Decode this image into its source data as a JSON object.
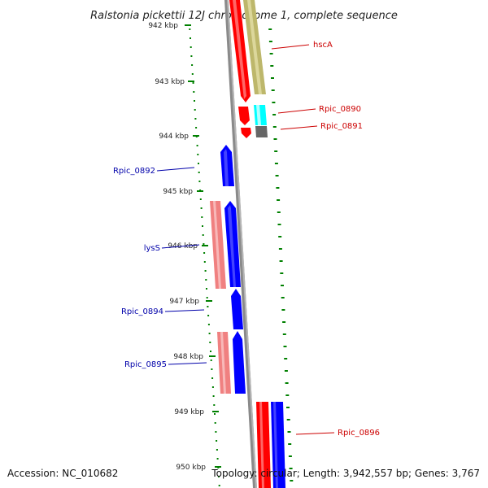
{
  "title": "Ralstonia pickettii 12J chromosome 1, complete sequence",
  "accession": "Accession: NC_010682",
  "topology": "Topology: circular; Length: 3,942,557 bp; Genes: 3,767",
  "ticks": [
    "942 kbp",
    "943 kbp",
    "944 kbp",
    "945 kbp",
    "946 kbp",
    "947 kbp",
    "948 kbp",
    "949 kbp",
    "950 kbp"
  ],
  "colors": {
    "forward": "#ff0000",
    "reverse": "#0000ff",
    "forward_rna": "#f08080",
    "tan": "#bdb76b",
    "cyan": "#00ffff",
    "gray": "#666666",
    "backbone": "#888888",
    "tick": "#008000"
  },
  "labels": [
    {
      "id": "hscA",
      "text": "hscA",
      "side": "right"
    },
    {
      "id": "rpic0890",
      "text": "Rpic_0890",
      "side": "right"
    },
    {
      "id": "rpic0891",
      "text": "Rpic_0891",
      "side": "right"
    },
    {
      "id": "rpic0892",
      "text": "Rpic_0892",
      "side": "left"
    },
    {
      "id": "lysS",
      "text": "lysS",
      "side": "left"
    },
    {
      "id": "rpic0894",
      "text": "Rpic_0894",
      "side": "left"
    },
    {
      "id": "rpic0895",
      "text": "Rpic_0895",
      "side": "left"
    },
    {
      "id": "rpic0896",
      "text": "Rpic_0896",
      "side": "right"
    }
  ]
}
